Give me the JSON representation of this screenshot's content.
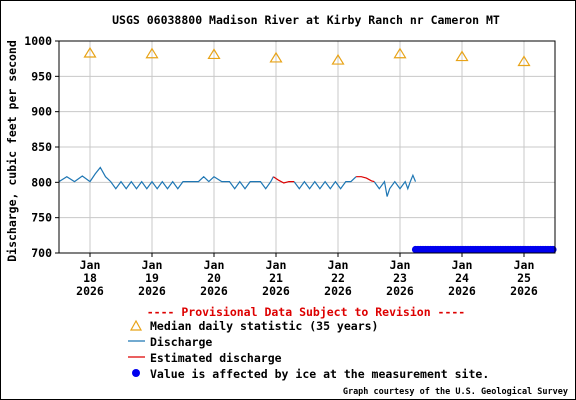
{
  "chart_data": {
    "type": "line",
    "title": "USGS 06038800 Madison River at Kirby Ranch nr Cameron MT",
    "ylabel": "Discharge, cubic feet per second",
    "xlabel": "",
    "ylim": [
      700,
      1000
    ],
    "yticks": [
      700,
      750,
      800,
      850,
      900,
      950,
      1000
    ],
    "xlim": [
      "2026-01-17 12:00",
      "2026-01-25 12:00"
    ],
    "x_tick_labels": [
      {
        "date": "2026-01-18",
        "lines": [
          "Jan",
          "18",
          "2026"
        ]
      },
      {
        "date": "2026-01-19",
        "lines": [
          "Jan",
          "19",
          "2026"
        ]
      },
      {
        "date": "2026-01-20",
        "lines": [
          "Jan",
          "20",
          "2026"
        ]
      },
      {
        "date": "2026-01-21",
        "lines": [
          "Jan",
          "21",
          "2026"
        ]
      },
      {
        "date": "2026-01-22",
        "lines": [
          "Jan",
          "22",
          "2026"
        ]
      },
      {
        "date": "2026-01-23",
        "lines": [
          "Jan",
          "23",
          "2026"
        ]
      },
      {
        "date": "2026-01-24",
        "lines": [
          "Jan",
          "24",
          "2026"
        ]
      },
      {
        "date": "2026-01-25",
        "lines": [
          "Jan",
          "25",
          "2026"
        ]
      }
    ],
    "grid": true,
    "series": [
      {
        "name": "Median daily statistic (35 years)",
        "kind": "triangle",
        "color": "#e8a317",
        "points": [
          [
            "2026-01-18",
            983
          ],
          [
            "2026-01-19",
            982
          ],
          [
            "2026-01-20",
            981
          ],
          [
            "2026-01-21",
            976
          ],
          [
            "2026-01-22",
            973
          ],
          [
            "2026-01-23",
            982
          ],
          [
            "2026-01-24",
            978
          ],
          [
            "2026-01-25",
            971
          ]
        ]
      },
      {
        "name": "Discharge",
        "kind": "line",
        "color": "#1f77b4",
        "points": [
          [
            "2026-01-17 12:00",
            801
          ],
          [
            "2026-01-17 15:00",
            808
          ],
          [
            "2026-01-17 18:00",
            801
          ],
          [
            "2026-01-17 21:00",
            809
          ],
          [
            "2026-01-18 00:00",
            801
          ],
          [
            "2026-01-18 02:00",
            812
          ],
          [
            "2026-01-18 04:00",
            821
          ],
          [
            "2026-01-18 06:00",
            808
          ],
          [
            "2026-01-18 08:00",
            801
          ],
          [
            "2026-01-18 10:00",
            791
          ],
          [
            "2026-01-18 12:00",
            801
          ],
          [
            "2026-01-18 14:00",
            791
          ],
          [
            "2026-01-18 16:00",
            801
          ],
          [
            "2026-01-18 18:00",
            791
          ],
          [
            "2026-01-18 20:00",
            801
          ],
          [
            "2026-01-18 22:00",
            791
          ],
          [
            "2026-01-19 00:00",
            801
          ],
          [
            "2026-01-19 02:00",
            791
          ],
          [
            "2026-01-19 04:00",
            801
          ],
          [
            "2026-01-19 06:00",
            791
          ],
          [
            "2026-01-19 08:00",
            801
          ],
          [
            "2026-01-19 10:00",
            791
          ],
          [
            "2026-01-19 12:00",
            801
          ],
          [
            "2026-01-19 14:00",
            801
          ],
          [
            "2026-01-19 16:00",
            801
          ],
          [
            "2026-01-19 18:00",
            801
          ],
          [
            "2026-01-19 20:00",
            808
          ],
          [
            "2026-01-19 22:00",
            801
          ],
          [
            "2026-01-20 00:00",
            808
          ],
          [
            "2026-01-20 03:00",
            801
          ],
          [
            "2026-01-20 06:00",
            801
          ],
          [
            "2026-01-20 08:00",
            791
          ],
          [
            "2026-01-20 10:00",
            801
          ],
          [
            "2026-01-20 12:00",
            791
          ],
          [
            "2026-01-20 14:00",
            801
          ],
          [
            "2026-01-20 16:00",
            801
          ],
          [
            "2026-01-20 18:00",
            801
          ],
          [
            "2026-01-20 20:00",
            791
          ],
          [
            "2026-01-20 22:00",
            801
          ],
          [
            "2026-01-20 23:00",
            808
          ]
        ]
      },
      {
        "name": "Discharge",
        "kind": "line",
        "color": "#1f77b4",
        "points": [
          [
            "2026-01-21 07:00",
            801
          ],
          [
            "2026-01-21 09:00",
            791
          ],
          [
            "2026-01-21 11:00",
            801
          ],
          [
            "2026-01-21 13:00",
            791
          ],
          [
            "2026-01-21 15:00",
            801
          ],
          [
            "2026-01-21 17:00",
            791
          ],
          [
            "2026-01-21 19:00",
            801
          ],
          [
            "2026-01-21 21:00",
            791
          ],
          [
            "2026-01-21 23:00",
            801
          ],
          [
            "2026-01-22 01:00",
            791
          ],
          [
            "2026-01-22 03:00",
            801
          ],
          [
            "2026-01-22 05:00",
            801
          ],
          [
            "2026-01-22 07:00",
            808
          ]
        ]
      },
      {
        "name": "Discharge",
        "kind": "line",
        "color": "#1f77b4",
        "points": [
          [
            "2026-01-22 14:00",
            801
          ],
          [
            "2026-01-22 16:00",
            791
          ],
          [
            "2026-01-22 18:00",
            801
          ],
          [
            "2026-01-22 19:00",
            780
          ],
          [
            "2026-01-22 20:00",
            791
          ],
          [
            "2026-01-22 22:00",
            801
          ],
          [
            "2026-01-23 00:00",
            791
          ],
          [
            "2026-01-23 02:00",
            801
          ],
          [
            "2026-01-23 03:00",
            791
          ],
          [
            "2026-01-23 04:00",
            801
          ],
          [
            "2026-01-23 05:00",
            810
          ],
          [
            "2026-01-23 06:00",
            801
          ]
        ]
      },
      {
        "name": "Estimated discharge",
        "kind": "line",
        "color": "#dd0000",
        "segments": [
          [
            [
              "2026-01-20 23:00",
              808
            ],
            [
              "2026-01-21 01:00",
              803
            ],
            [
              "2026-01-21 03:00",
              799
            ],
            [
              "2026-01-21 05:00",
              801
            ],
            [
              "2026-01-21 07:00",
              801
            ]
          ],
          [
            [
              "2026-01-22 07:00",
              808
            ],
            [
              "2026-01-22 09:00",
              808
            ],
            [
              "2026-01-22 11:00",
              806
            ],
            [
              "2026-01-22 13:00",
              802
            ],
            [
              "2026-01-22 14:00",
              801
            ]
          ]
        ]
      },
      {
        "name": "Value is affected by ice at the measurement site.",
        "kind": "ice",
        "color": "#0000ee",
        "y": 705,
        "range": [
          "2026-01-23 06:00",
          "2026-01-25 12:00"
        ]
      }
    ]
  },
  "footer": {
    "provisional": "---- Provisional Data Subject to Revision ----",
    "credit": "Graph courtesy of the U.S. Geological Survey"
  }
}
